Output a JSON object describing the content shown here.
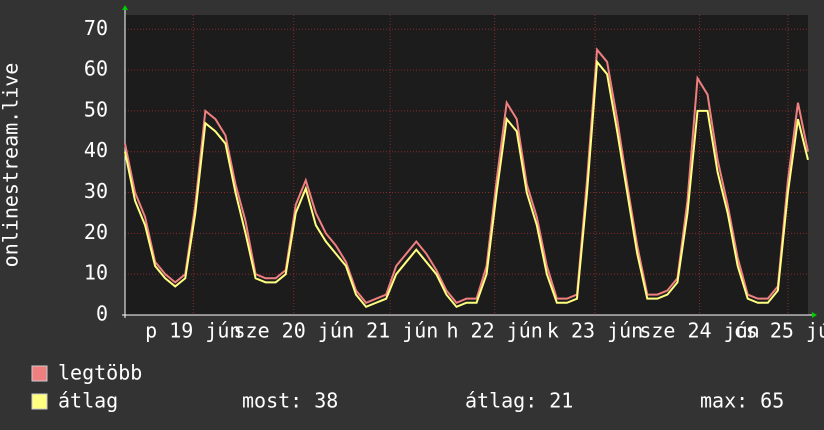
{
  "chart_data": {
    "type": "line",
    "ylabel": "onlinestream.live",
    "x": [
      0,
      2.5,
      5,
      7.5,
      10,
      12.5,
      15,
      17.5,
      20,
      22.5,
      25,
      27.5,
      30,
      32.5,
      35,
      37.5,
      40,
      42.5,
      45,
      47.5,
      50,
      52.5,
      55,
      57.5,
      60,
      62.5,
      65,
      67.5,
      70,
      72.5,
      75,
      77.5,
      80,
      82.5,
      85,
      87.5,
      90,
      92.5,
      95,
      97.5,
      100,
      102.5,
      105,
      107.5,
      110,
      112.5,
      115,
      117.5,
      120,
      122.5,
      125,
      127.5,
      130,
      132.5,
      135,
      137.5,
      140,
      142.5,
      145,
      147.5,
      150,
      152.5,
      155,
      157.5,
      160,
      162.5,
      165,
      167.5,
      170
    ],
    "series": [
      {
        "name": "legtöbb",
        "color": "#f08080",
        "values": [
          42,
          30,
          24,
          13,
          10,
          8,
          10,
          27,
          50,
          48,
          44,
          32,
          23,
          10,
          9,
          9,
          11,
          27,
          33,
          25,
          20,
          17,
          13,
          6,
          3,
          4,
          5,
          12,
          15,
          18,
          15,
          11,
          6,
          3,
          4,
          4,
          12,
          33,
          52,
          48,
          32,
          24,
          12,
          4,
          4,
          5,
          33,
          65,
          62,
          48,
          32,
          17,
          5,
          5,
          6,
          9,
          28,
          58,
          54,
          38,
          27,
          14,
          5,
          4,
          4,
          7,
          33,
          52,
          40
        ]
      },
      {
        "name": "átlag",
        "color": "#ffff80",
        "values": [
          40,
          28,
          22,
          12,
          9,
          7,
          9,
          25,
          47,
          45,
          42,
          30,
          20,
          9,
          8,
          8,
          10,
          25,
          31,
          22,
          18,
          15,
          12,
          5,
          2,
          3,
          4,
          10,
          13,
          16,
          13,
          10,
          5,
          2,
          3,
          3,
          10,
          30,
          48,
          45,
          30,
          22,
          10,
          3,
          3,
          4,
          30,
          62,
          59,
          45,
          30,
          15,
          4,
          4,
          5,
          8,
          25,
          50,
          50,
          35,
          25,
          12,
          4,
          3,
          3,
          6,
          30,
          48,
          38
        ]
      }
    ],
    "xlim": [
      0,
      170
    ],
    "xticks": [
      {
        "value": 17,
        "label": "p 19 jún"
      },
      {
        "value": 42,
        "label": "sze 20 jún"
      },
      {
        "value": 66,
        "label": "n 21 jún"
      },
      {
        "value": 92,
        "label": "h 22 jún"
      },
      {
        "value": 117,
        "label": "k 23 jún"
      },
      {
        "value": 143,
        "label": "sze 24 jún"
      },
      {
        "value": 165,
        "label": "cs 25 jún"
      }
    ],
    "ylim": [
      0,
      73.5
    ],
    "yticks": [
      0,
      10,
      20,
      30,
      40,
      50,
      60,
      70
    ],
    "grid": true,
    "stats": [
      {
        "label": "most:",
        "value": 38
      },
      {
        "label": "átlag:",
        "value": 21
      },
      {
        "label": "max:",
        "value": 65
      }
    ]
  }
}
